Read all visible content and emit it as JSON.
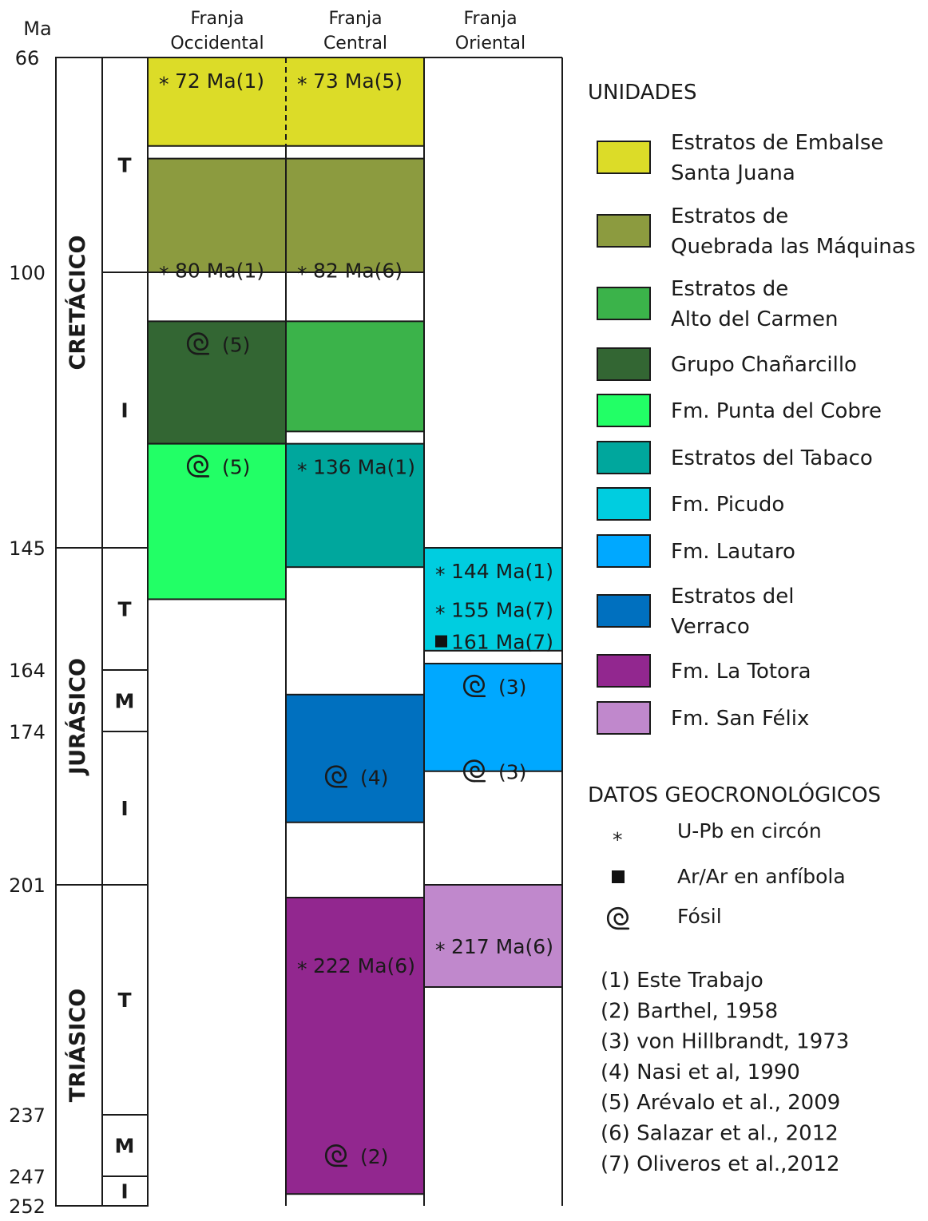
{
  "axis": {
    "unit": "Ma",
    "ticks": [
      66,
      100,
      145,
      164,
      174,
      201,
      237,
      247,
      252
    ]
  },
  "columns": [
    {
      "label": [
        "Franja",
        "Occidental"
      ]
    },
    {
      "label": [
        "Franja",
        "Central"
      ]
    },
    {
      "label": [
        "Franja",
        "Oriental"
      ]
    }
  ],
  "periods": [
    {
      "name": "CRETÁCICO",
      "from": 66,
      "to": 145
    },
    {
      "name": "JURÁSICO",
      "from": 145,
      "to": 201
    },
    {
      "name": "TRIÁSICO",
      "from": 201,
      "to": 252
    }
  ],
  "epochs": [
    {
      "name": "T",
      "from": 66,
      "to": 100
    },
    {
      "name": "I",
      "from": 100,
      "to": 145
    },
    {
      "name": "T",
      "from": 145,
      "to": 164
    },
    {
      "name": "M",
      "from": 164,
      "to": 174
    },
    {
      "name": "I",
      "from": 174,
      "to": 201
    },
    {
      "name": "T",
      "from": 201,
      "to": 237
    },
    {
      "name": "M",
      "from": 237,
      "to": 247
    },
    {
      "name": "I",
      "from": 247,
      "to": 252
    }
  ],
  "legend": {
    "units_title": "UNIDADES",
    "units": [
      {
        "id": "embalse",
        "label": [
          "Estratos de Embalse",
          "Santa Juana"
        ],
        "color": "#dcdc28"
      },
      {
        "id": "maquinas",
        "label": [
          "Estratos de",
          "Quebrada las Máquinas"
        ],
        "color": "#8c9b3f"
      },
      {
        "id": "carmen",
        "label": [
          "Estratos de",
          "Alto del Carmen"
        ],
        "color": "#3bb34a"
      },
      {
        "id": "chanarcillo",
        "label": [
          "Grupo Chañarcillo"
        ],
        "color": "#336633"
      },
      {
        "id": "cobre",
        "label": [
          "Fm. Punta del Cobre"
        ],
        "color": "#22ff66"
      },
      {
        "id": "tabaco",
        "label": [
          "Estratos del Tabaco"
        ],
        "color": "#00a79d"
      },
      {
        "id": "picudo",
        "label": [
          "Fm. Picudo"
        ],
        "color": "#00cde0"
      },
      {
        "id": "lautaro",
        "label": [
          "Fm. Lautaro"
        ],
        "color": "#00a8ff"
      },
      {
        "id": "verraco",
        "label": [
          "Estratos del",
          "Verraco"
        ],
        "color": "#0070bf"
      },
      {
        "id": "totora",
        "label": [
          "Fm. La Totora"
        ],
        "color": "#92278f"
      },
      {
        "id": "felix",
        "label": [
          "Fm. San Félix"
        ],
        "color": "#c088cc"
      }
    ],
    "geo_title": "DATOS GEOCRONOLÓGICOS",
    "geo_items": [
      {
        "symbol": "asterisk",
        "label": "U-Pb en circón"
      },
      {
        "symbol": "square",
        "label": "Ar/Ar en anfíbola"
      },
      {
        "symbol": "fossil",
        "label": "Fósil"
      }
    ],
    "references": [
      "(1) Este Trabajo",
      "(2) Barthel, 1958",
      "(3) von Hillbrandt, 1973",
      "(4) Nasi et al, 1990",
      "(5) Arévalo et al., 2009",
      "(6) Salazar et al., 2012",
      "(7) Oliveros et al.,2012"
    ]
  },
  "chart_data": {
    "type": "table",
    "ylabel": "Ma",
    "ylim": [
      66,
      252
    ],
    "units": [
      {
        "unit": "embalse",
        "columns": [
          0,
          1
        ],
        "from": 66,
        "to": 80
      },
      {
        "unit": "maquinas",
        "columns": [
          0,
          1
        ],
        "from": 82,
        "to": 100
      },
      {
        "unit": "chanarcillo",
        "columns": [
          0
        ],
        "from": 108,
        "to": 128
      },
      {
        "unit": "carmen",
        "columns": [
          1
        ],
        "from": 108,
        "to": 126
      },
      {
        "unit": "cobre",
        "columns": [
          0
        ],
        "from": 128,
        "to": 153
      },
      {
        "unit": "tabaco",
        "columns": [
          1
        ],
        "from": 128,
        "to": 148
      },
      {
        "unit": "picudo",
        "columns": [
          2
        ],
        "from": 145,
        "to": 161
      },
      {
        "unit": "lautaro",
        "columns": [
          2
        ],
        "from": 163,
        "to": 181
      },
      {
        "unit": "verraco",
        "columns": [
          1
        ],
        "from": 168,
        "to": 190
      },
      {
        "unit": "felix",
        "columns": [
          2
        ],
        "from": 201,
        "to": 217
      },
      {
        "unit": "totora",
        "columns": [
          1
        ],
        "from": 203,
        "to": 250
      }
    ],
    "dates": [
      {
        "column": 0,
        "at": 66,
        "symbol": "asterisk",
        "text": "72 Ma(1)"
      },
      {
        "column": 1,
        "at": 66,
        "symbol": "asterisk",
        "text": "73 Ma(5)"
      },
      {
        "column": 0,
        "at": 96,
        "symbol": "asterisk",
        "text": "80 Ma(1)"
      },
      {
        "column": 1,
        "at": 96,
        "symbol": "asterisk",
        "text": "82 Ma(6)"
      },
      {
        "column": 0,
        "at": 108,
        "symbol": "fossil",
        "text": "(5)"
      },
      {
        "column": 0,
        "at": 128,
        "symbol": "fossil",
        "text": "(5)"
      },
      {
        "column": 1,
        "at": 128,
        "symbol": "asterisk",
        "text": "136 Ma(1)"
      },
      {
        "column": 2,
        "at": 145,
        "symbol": "asterisk",
        "text": "144 Ma(1)"
      },
      {
        "column": 2,
        "at": 151,
        "symbol": "asterisk",
        "text": "155 Ma(7)"
      },
      {
        "column": 2,
        "at": 156,
        "symbol": "square",
        "text": "161 Ma(7)"
      },
      {
        "column": 2,
        "at": 163,
        "symbol": "fossil",
        "text": "(3)"
      },
      {
        "column": 2,
        "at": 177,
        "symbol": "fossil",
        "text": "(3)"
      },
      {
        "column": 1,
        "at": 178,
        "symbol": "fossil",
        "text": "(4)"
      },
      {
        "column": 2,
        "at": 207,
        "symbol": "asterisk",
        "text": "217 Ma(6)"
      },
      {
        "column": 1,
        "at": 210,
        "symbol": "asterisk",
        "text": "222 Ma(6)"
      },
      {
        "column": 1,
        "at": 240,
        "symbol": "fossil",
        "text": "(2)"
      }
    ]
  }
}
